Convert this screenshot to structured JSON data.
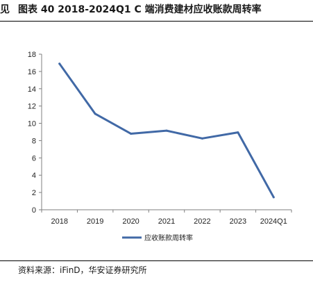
{
  "header": {
    "prefix": "见",
    "title": "图表 40 2018-2024Q1 C 端消费建材应收账款周转率"
  },
  "chart_data": {
    "type": "line",
    "categories": [
      "2018",
      "2019",
      "2020",
      "2021",
      "2022",
      "2023",
      "2024Q1"
    ],
    "series": [
      {
        "name": "应收账款周转率",
        "values": [
          16.9,
          11.1,
          8.8,
          9.15,
          8.25,
          8.95,
          1.45
        ],
        "color": "#4169a6"
      }
    ],
    "yticks": [
      "0",
      "2",
      "4",
      "6",
      "8",
      "10",
      "12",
      "14",
      "16",
      "18"
    ],
    "ylim": [
      0,
      18
    ],
    "grid": false,
    "legend": "bottom"
  },
  "footer": {
    "source": "资料来源：iFinD，华安证券研究所"
  }
}
